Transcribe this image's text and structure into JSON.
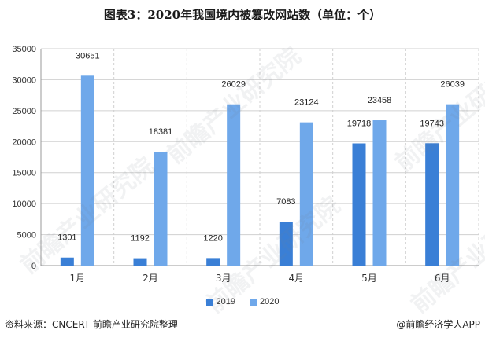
{
  "title": "图表3：2020年我国境内被篡改网站数（单位：个）",
  "source": "资料来源：CNCERT 前瞻产业研究院整理",
  "brand": "@前瞻经济学人APP",
  "watermark": "前瞻产业研究院",
  "colors": {
    "series_2019": "#3a7fd6",
    "series_2020": "#6fa8ea",
    "grid": "#d0d0d0",
    "axis": "#999999"
  },
  "chart_data": {
    "type": "bar",
    "title": "图表3：2020年我国境内被篡改网站数（单位：个）",
    "categories": [
      "1月",
      "2月",
      "3月",
      "4月",
      "5月",
      "6月"
    ],
    "series": [
      {
        "name": "2019",
        "values": [
          1301,
          1192,
          1220,
          7083,
          19718,
          19743
        ]
      },
      {
        "name": "2020",
        "values": [
          30651,
          18381,
          26029,
          23124,
          23458,
          26039
        ]
      }
    ],
    "xlabel": "",
    "ylabel": "",
    "ylim": [
      0,
      35000
    ],
    "yticks": [
      0,
      5000,
      10000,
      15000,
      20000,
      25000,
      30000,
      35000
    ],
    "grid": true,
    "legend_position": "bottom"
  }
}
